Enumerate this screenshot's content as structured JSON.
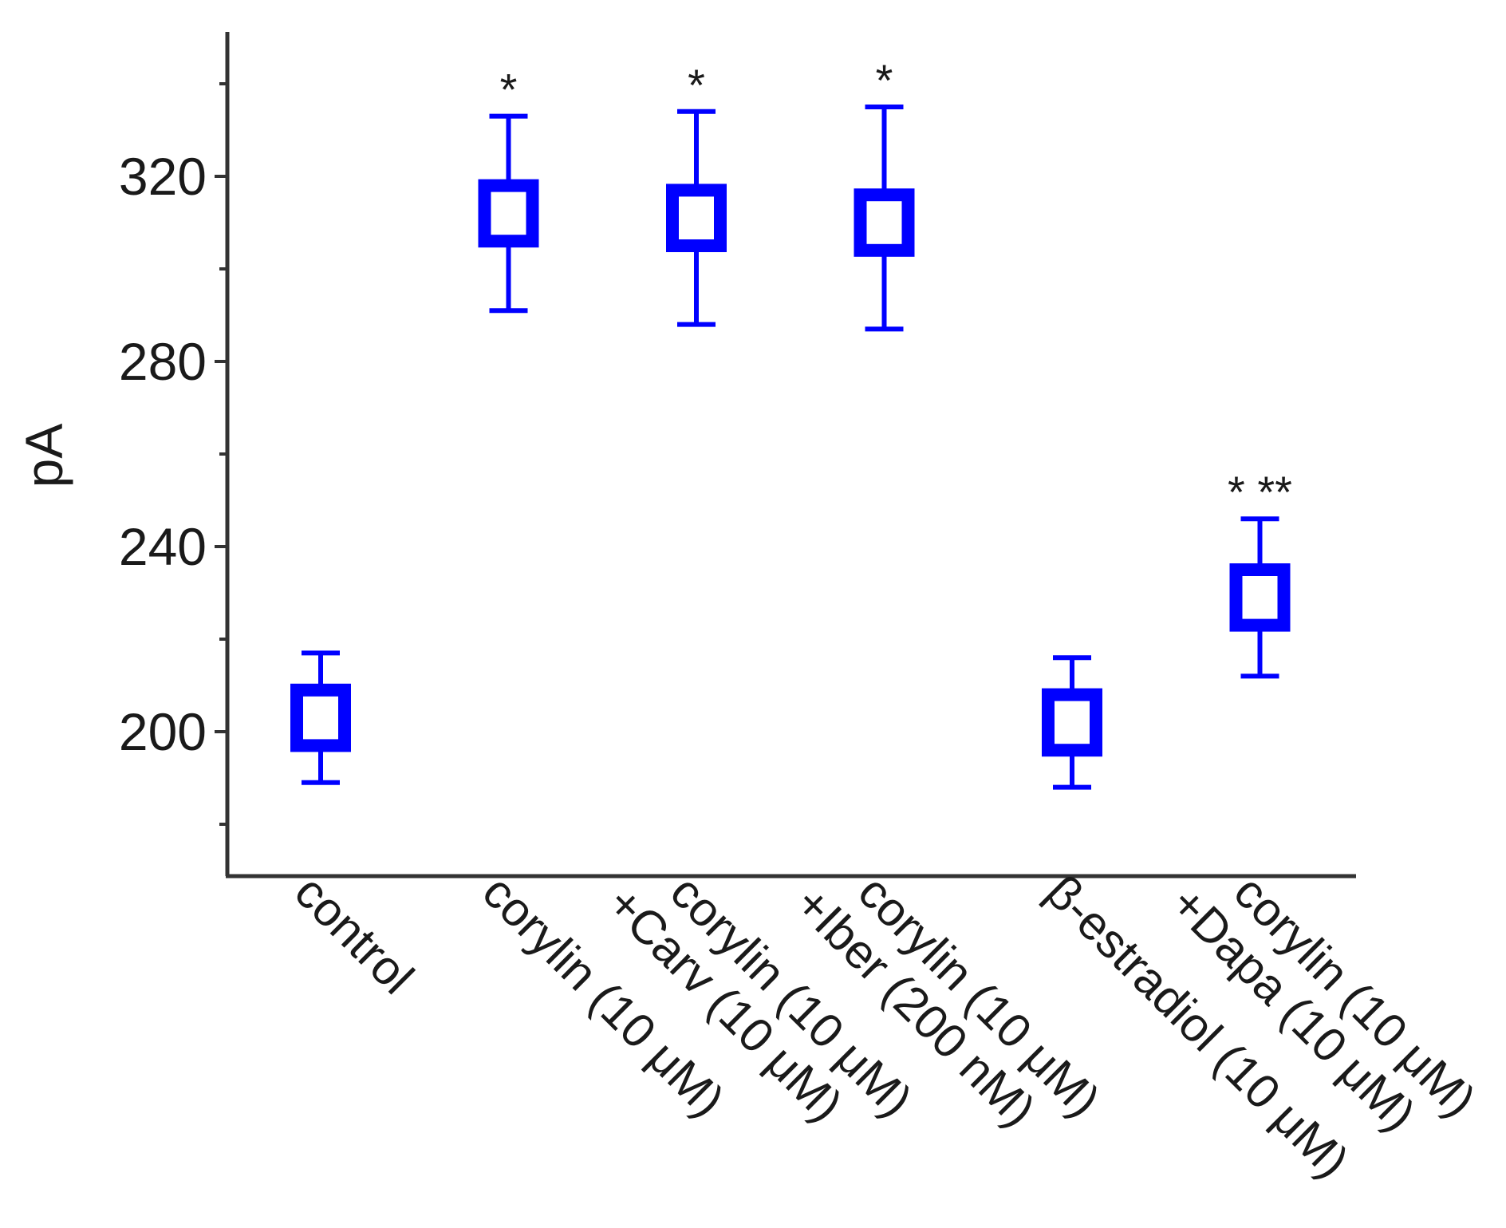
{
  "chart_data": {
    "type": "box",
    "title": "",
    "xlabel": "",
    "ylabel": "pA",
    "ylim": [
      170,
      350
    ],
    "yticks": [
      200,
      240,
      280,
      320
    ],
    "minor_yticks": [
      180,
      220,
      260,
      300,
      340
    ],
    "color": "#0000ff",
    "categories": [
      [
        "control"
      ],
      [
        "corylin (10 μM)"
      ],
      [
        "corylin (10 μM)",
        "+Carv (10 μM)"
      ],
      [
        "corylin (10 μM)",
        "+Iber (200 nM)"
      ],
      [
        "β-estradiol (10 μM)"
      ],
      [
        "corylin (10 μM)",
        "+Dapa (10 μM)"
      ]
    ],
    "series": [
      {
        "boxes": [
          {
            "center": 203,
            "q1": 197,
            "q3": 209,
            "whisker_low": 189,
            "whisker_high": 217,
            "significance": ""
          },
          {
            "center": 312,
            "q1": 306,
            "q3": 318,
            "whisker_low": 291,
            "whisker_high": 333,
            "significance": "*"
          },
          {
            "center": 311,
            "q1": 305,
            "q3": 317,
            "whisker_low": 288,
            "whisker_high": 334,
            "significance": "*"
          },
          {
            "center": 310,
            "q1": 304,
            "q3": 316,
            "whisker_low": 287,
            "whisker_high": 335,
            "significance": "*"
          },
          {
            "center": 202,
            "q1": 196,
            "q3": 208,
            "whisker_low": 188,
            "whisker_high": 216,
            "significance": ""
          },
          {
            "center": 229,
            "q1": 223,
            "q3": 235,
            "whisker_low": 212,
            "whisker_high": 246,
            "significance": "* **"
          }
        ]
      }
    ],
    "grid": false,
    "legend": "none"
  }
}
